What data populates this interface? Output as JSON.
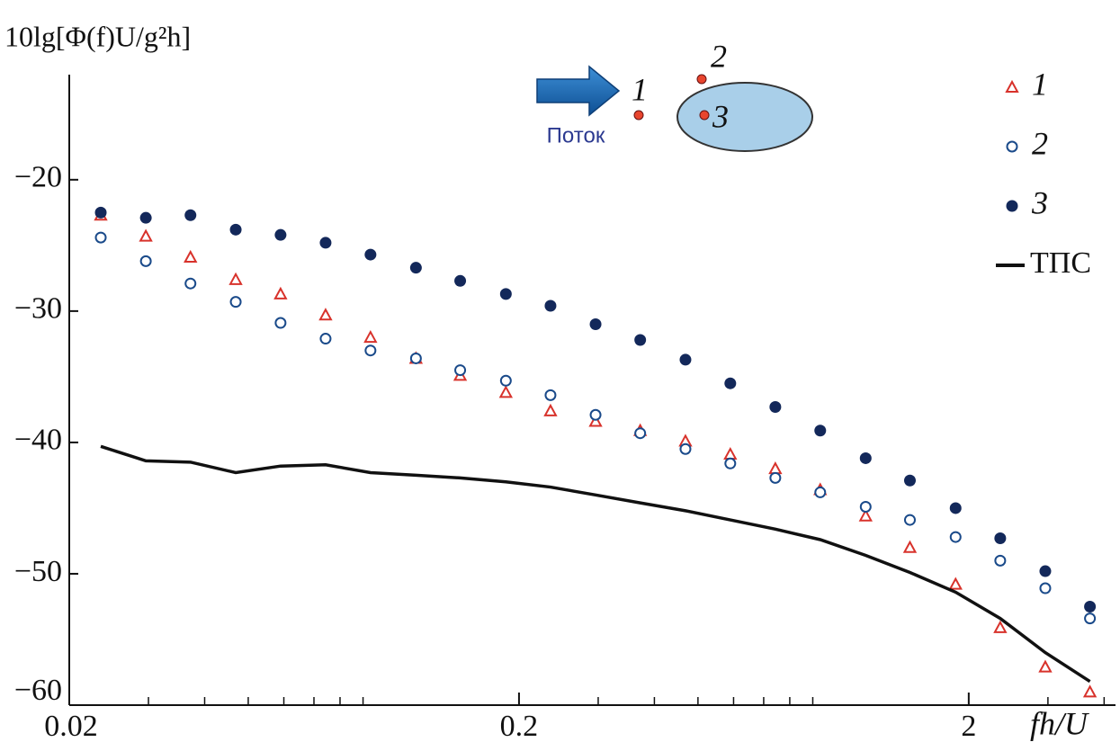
{
  "chart_data": {
    "type": "scatter",
    "y_label": "10lg[Φ(f)U/g²h]",
    "x_label": "fh/U",
    "xlog": true,
    "xlim": [
      0.02,
      4.24
    ],
    "ylim": [
      -60,
      -12
    ],
    "xticks": [
      0.02,
      0.2,
      2
    ],
    "xminor_ticks": [
      0.03,
      0.04,
      0.05,
      0.06,
      0.07,
      0.08,
      0.09,
      0.3,
      0.4,
      0.5,
      0.6,
      0.7,
      0.8,
      0.9,
      3,
      4
    ],
    "yticks": [
      {
        "value": -20,
        "label": "−20"
      },
      {
        "value": -30,
        "label": "−30"
      },
      {
        "value": -40,
        "label": "−40"
      },
      {
        "value": -50,
        "label": "−50"
      },
      {
        "value": -60,
        "label": "−60"
      }
    ],
    "x": [
      0.0235,
      0.0296,
      0.0372,
      0.0469,
      0.059,
      0.0743,
      0.0935,
      0.118,
      0.148,
      0.187,
      0.235,
      0.296,
      0.372,
      0.469,
      0.59,
      0.743,
      0.935,
      1.18,
      1.48,
      1.87,
      2.35,
      2.96,
      3.72
    ],
    "legend_position": "upper right",
    "series": [
      {
        "name": "1",
        "marker": "triangle-open",
        "color": "#d8322b",
        "values": [
          -22.7,
          -24.3,
          -25.9,
          -27.6,
          -28.7,
          -30.3,
          -32.0,
          -33.6,
          -34.9,
          -36.2,
          -37.6,
          -38.4,
          -39.1,
          -39.9,
          -40.9,
          -42.0,
          -43.6,
          -45.6,
          -48.0,
          -50.8,
          -54.1,
          -57.1,
          -59.0
        ]
      },
      {
        "name": "2",
        "marker": "circle-open",
        "color": "#1a4a8a",
        "values": [
          -24.4,
          -26.2,
          -27.9,
          -29.3,
          -30.9,
          -32.1,
          -33.0,
          -33.6,
          -34.5,
          -35.3,
          -36.4,
          -37.9,
          -39.3,
          -40.5,
          -41.6,
          -42.7,
          -43.8,
          -44.9,
          -45.9,
          -47.2,
          -49.0,
          -51.1,
          -53.4
        ]
      },
      {
        "name": "3",
        "marker": "circle-filled",
        "color": "#13285a",
        "values": [
          -22.5,
          -22.9,
          -22.7,
          -23.8,
          -24.2,
          -24.8,
          -25.7,
          -26.7,
          -27.7,
          -28.7,
          -29.6,
          -31.0,
          -32.2,
          -33.7,
          -35.5,
          -37.3,
          -39.1,
          -41.2,
          -42.9,
          -45.0,
          -47.3,
          -49.8,
          -52.5
        ]
      },
      {
        "name": "ТПС",
        "marker": "line",
        "color": "#111111",
        "values": [
          -40.3,
          -41.4,
          -41.5,
          -42.3,
          -41.8,
          -41.7,
          -42.3,
          -42.5,
          -42.7,
          -43.0,
          -43.4,
          -44.0,
          -44.6,
          -45.2,
          -45.9,
          -46.6,
          -47.4,
          -48.6,
          -49.9,
          -51.4,
          -53.4,
          -56.0,
          -58.2
        ]
      }
    ],
    "inset": {
      "flow_label": "Поток",
      "point_labels": [
        "1",
        "2",
        "3"
      ]
    }
  }
}
